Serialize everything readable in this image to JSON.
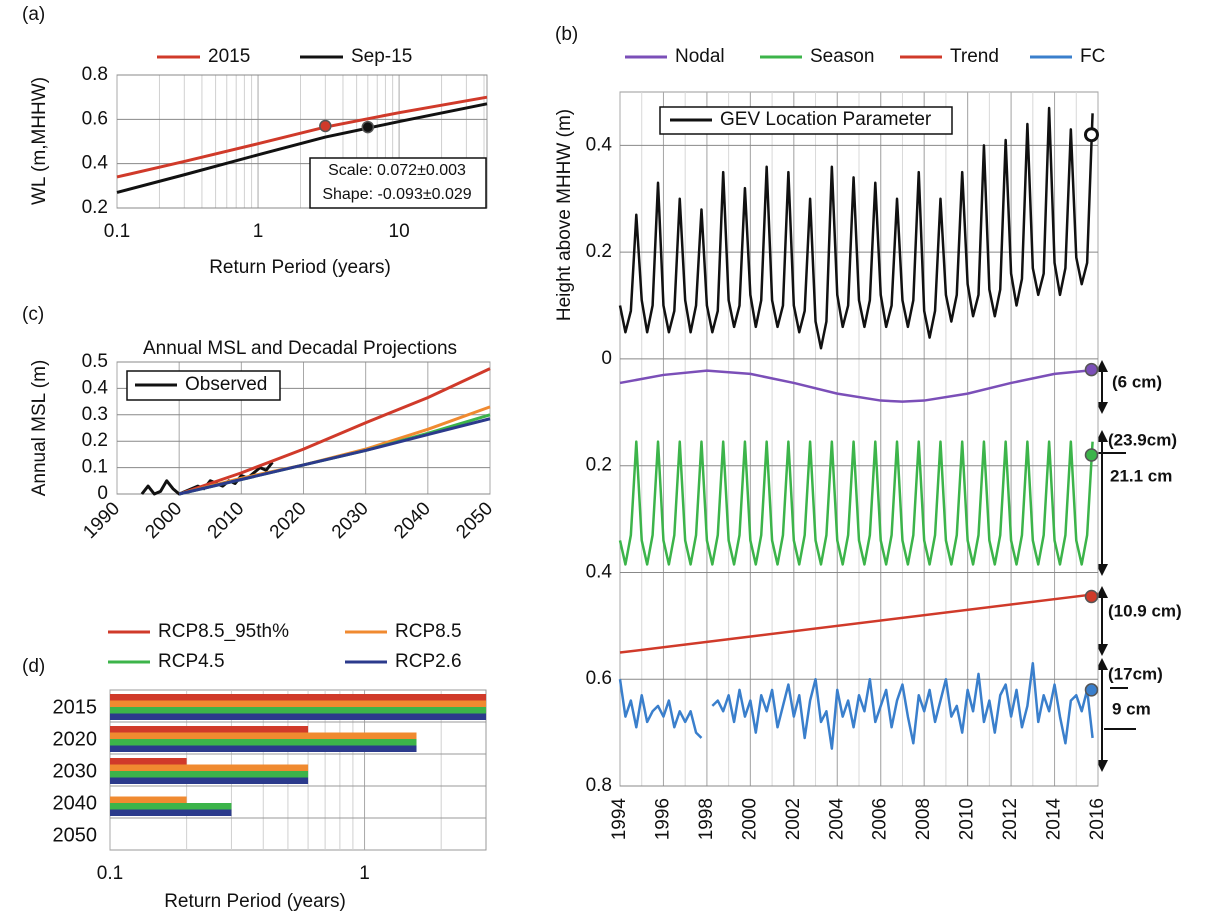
{
  "chart_data": [
    {
      "type": "line",
      "panel_label": "(a)",
      "x_label": "Return Period (years)",
      "y_label": "WL (m,MHHW)",
      "x_log": true,
      "xlim": [
        0.1,
        42
      ],
      "xticks": [
        0.1,
        1,
        10
      ],
      "ylim": [
        0.2,
        0.8
      ],
      "yticks": [
        0.2,
        0.4,
        0.6,
        0.8
      ],
      "grid": true,
      "x": [
        0.1,
        0.3,
        1,
        3,
        10,
        42
      ],
      "series": [
        {
          "name": "2015",
          "color": "#d03a2a",
          "values": [
            0.34,
            0.41,
            0.49,
            0.565,
            0.63,
            0.7
          ],
          "marker_x": 3,
          "marker_y": 0.57
        },
        {
          "name": "Sep-15",
          "color": "#111111",
          "values": [
            0.27,
            0.35,
            0.44,
            0.52,
            0.59,
            0.67
          ],
          "marker_x": 6,
          "marker_y": 0.565
        }
      ],
      "annotations": [
        "Scale: 0.072±0.003",
        "Shape: -0.093±0.029"
      ]
    },
    {
      "type": "line",
      "panel_label": "(b)",
      "y_label": "Height above MHHW (m)",
      "xlim": [
        1994,
        2016
      ],
      "xticks": [
        1994,
        1996,
        1998,
        2000,
        2002,
        2004,
        2006,
        2008,
        2010,
        2012,
        2014,
        2016
      ],
      "ylim": [
        -0.8,
        0.5
      ],
      "yticks": [
        0.4,
        0.2,
        0,
        {
          "value": -0.2,
          "label": "0.2"
        },
        {
          "value": -0.4,
          "label": "0.4"
        },
        {
          "value": -0.6,
          "label": "0.6"
        },
        {
          "value": -0.8,
          "label": "0.8"
        }
      ],
      "grid": true,
      "x": [
        1994,
        1994.25,
        1994.5,
        1994.75,
        1995,
        1995.25,
        1995.5,
        1995.75,
        1996,
        1996.25,
        1996.5,
        1996.75,
        1997,
        1997.25,
        1997.5,
        1997.75,
        1998,
        1998.25,
        1998.5,
        1998.75,
        1999,
        1999.25,
        1999.5,
        1999.75,
        2000,
        2000.25,
        2000.5,
        2000.75,
        2001,
        2001.25,
        2001.5,
        2001.75,
        2002,
        2002.25,
        2002.5,
        2002.75,
        2003,
        2003.25,
        2003.5,
        2003.75,
        2004,
        2004.25,
        2004.5,
        2004.75,
        2005,
        2005.25,
        2005.5,
        2005.75,
        2006,
        2006.25,
        2006.5,
        2006.75,
        2007,
        2007.25,
        2007.5,
        2007.75,
        2008,
        2008.25,
        2008.5,
        2008.75,
        2009,
        2009.25,
        2009.5,
        2009.75,
        2010,
        2010.25,
        2010.5,
        2010.75,
        2011,
        2011.25,
        2011.5,
        2011.75,
        2012,
        2012.25,
        2012.5,
        2012.75,
        2013,
        2013.25,
        2013.5,
        2013.75,
        2014,
        2014.25,
        2014.5,
        2014.75,
        2015,
        2015.25,
        2015.5,
        2015.75
      ],
      "series": [
        {
          "name": "Nodal",
          "color": "#7b4fb8",
          "x": [
            1994,
            1996,
            1998,
            2000,
            2002,
            2004,
            2006,
            2007,
            2008,
            2010,
            2012,
            2014,
            2016
          ],
          "values": [
            -0.045,
            -0.03,
            -0.022,
            -0.028,
            -0.045,
            -0.065,
            -0.078,
            -0.08,
            -0.078,
            -0.065,
            -0.045,
            -0.028,
            -0.02
          ],
          "marker_x": 2015.7,
          "marker_y": -0.02
        },
        {
          "name": "Season",
          "color": "#3cb44a",
          "values": [
            -0.34,
            -0.385,
            -0.33,
            -0.155,
            -0.34,
            -0.385,
            -0.33,
            -0.155,
            -0.34,
            -0.385,
            -0.33,
            -0.155,
            -0.34,
            -0.385,
            -0.33,
            -0.155,
            -0.34,
            -0.385,
            -0.33,
            -0.155,
            -0.34,
            -0.385,
            -0.33,
            -0.155,
            -0.34,
            -0.385,
            -0.33,
            -0.155,
            -0.34,
            -0.385,
            -0.33,
            -0.155,
            -0.34,
            -0.385,
            -0.33,
            -0.155,
            -0.34,
            -0.385,
            -0.33,
            -0.155,
            -0.34,
            -0.385,
            -0.33,
            -0.155,
            -0.34,
            -0.385,
            -0.33,
            -0.155,
            -0.34,
            -0.385,
            -0.33,
            -0.155,
            -0.34,
            -0.385,
            -0.33,
            -0.155,
            -0.34,
            -0.385,
            -0.33,
            -0.155,
            -0.34,
            -0.385,
            -0.33,
            -0.155,
            -0.34,
            -0.385,
            -0.33,
            -0.155,
            -0.34,
            -0.385,
            -0.33,
            -0.155,
            -0.34,
            -0.385,
            -0.33,
            -0.155,
            -0.34,
            -0.385,
            -0.33,
            -0.155,
            -0.34,
            -0.385,
            -0.33,
            -0.155,
            -0.34,
            -0.385,
            -0.33,
            -0.155
          ],
          "marker_x": 2015.7,
          "marker_y": -0.18
        },
        {
          "name": "Trend",
          "color": "#d03a2a",
          "x": [
            1994,
            2016
          ],
          "values": [
            -0.55,
            -0.44
          ],
          "marker_x": 2015.7,
          "marker_y": -0.445
        },
        {
          "name": "FC",
          "color": "#3a7fcc",
          "values": [
            -0.6,
            -0.67,
            -0.64,
            -0.69,
            -0.63,
            -0.68,
            -0.66,
            -0.65,
            -0.67,
            -0.64,
            -0.69,
            -0.66,
            -0.68,
            -0.66,
            -0.7,
            -0.71,
            null,
            -0.65,
            -0.64,
            -0.66,
            -0.63,
            -0.68,
            -0.62,
            -0.67,
            -0.64,
            -0.7,
            -0.63,
            -0.66,
            -0.62,
            -0.69,
            -0.65,
            -0.61,
            -0.67,
            -0.63,
            -0.71,
            -0.64,
            -0.6,
            -0.68,
            -0.66,
            -0.73,
            -0.62,
            -0.67,
            -0.64,
            -0.69,
            -0.63,
            -0.66,
            -0.6,
            -0.68,
            -0.65,
            -0.62,
            -0.69,
            -0.64,
            -0.61,
            -0.67,
            -0.72,
            -0.63,
            -0.66,
            -0.62,
            -0.68,
            -0.64,
            -0.6,
            -0.67,
            -0.65,
            -0.7,
            -0.62,
            -0.66,
            -0.59,
            -0.68,
            -0.64,
            -0.7,
            -0.63,
            -0.61,
            -0.67,
            -0.62,
            -0.69,
            -0.65,
            -0.57,
            -0.68,
            -0.63,
            -0.66,
            -0.61,
            -0.67,
            -0.72,
            -0.64,
            -0.63,
            -0.66,
            -0.62,
            -0.71
          ],
          "marker_x": 2015.7,
          "marker_y": -0.62
        },
        {
          "name": "GEV Location Parameter",
          "color": "#111111",
          "values": [
            0.1,
            0.05,
            0.09,
            0.27,
            0.11,
            0.05,
            0.1,
            0.33,
            0.1,
            0.05,
            0.09,
            0.3,
            0.11,
            0.05,
            0.1,
            0.28,
            0.1,
            0.05,
            0.09,
            0.35,
            0.11,
            0.06,
            0.1,
            0.32,
            0.12,
            0.06,
            0.11,
            0.36,
            0.11,
            0.06,
            0.1,
            0.35,
            0.1,
            0.05,
            0.09,
            0.3,
            0.07,
            0.02,
            0.07,
            0.36,
            0.12,
            0.06,
            0.1,
            0.34,
            0.11,
            0.06,
            0.11,
            0.33,
            0.12,
            0.06,
            0.1,
            0.3,
            0.11,
            0.06,
            0.11,
            0.35,
            0.09,
            0.04,
            0.09,
            0.3,
            0.12,
            0.07,
            0.12,
            0.35,
            0.14,
            0.08,
            0.12,
            0.4,
            0.13,
            0.08,
            0.13,
            0.41,
            0.16,
            0.1,
            0.15,
            0.44,
            0.17,
            0.12,
            0.16,
            0.47,
            0.18,
            0.12,
            0.17,
            0.43,
            0.19,
            0.14,
            0.18,
            0.46
          ],
          "marker_x": 2015.7,
          "marker_y": 0.42,
          "marker_fill": "#ffffff"
        }
      ],
      "annotations": [
        "(6 cm)",
        "(23.9cm)",
        "21.1 cm",
        "(10.9 cm)",
        "(17cm)",
        "9 cm"
      ]
    },
    {
      "type": "line",
      "panel_label": "(c)",
      "title": "Annual MSL and Decadal Projections",
      "y_label": "Annual MSL (m)",
      "xlim": [
        1990,
        2050
      ],
      "xticks": [
        1990,
        2000,
        2010,
        2020,
        2030,
        2040,
        2050
      ],
      "ylim": [
        0,
        0.5
      ],
      "yticks": [
        0,
        0.1,
        0.2,
        0.3,
        0.4,
        0.5
      ],
      "grid": true,
      "series": [
        {
          "name": "Observed",
          "color": "#111111",
          "x": [
            1994,
            1995,
            1996,
            1997,
            1998,
            1999,
            2000,
            2001,
            2002,
            2003,
            2004,
            2005,
            2006,
            2007,
            2008,
            2009,
            2010,
            2011,
            2012,
            2013,
            2014,
            2015
          ],
          "values": [
            0,
            0.03,
            0,
            0.01,
            0.05,
            0.02,
            0,
            0.01,
            0.02,
            0.03,
            0.02,
            0.05,
            0.04,
            0.03,
            0.05,
            0.04,
            0.07,
            0.06,
            0.08,
            0.1,
            0.09,
            0.12
          ]
        },
        {
          "color": "#d03a2a",
          "x": [
            2000,
            2010,
            2020,
            2030,
            2040,
            2050
          ],
          "values": [
            0,
            0.08,
            0.17,
            0.27,
            0.365,
            0.475
          ]
        },
        {
          "color": "#f08a30",
          "x": [
            2000,
            2010,
            2020,
            2030,
            2040,
            2050
          ],
          "values": [
            0,
            0.06,
            0.11,
            0.17,
            0.245,
            0.33
          ]
        },
        {
          "color": "#3cb44a",
          "x": [
            2000,
            2010,
            2020,
            2030,
            2040,
            2050
          ],
          "values": [
            0,
            0.055,
            0.11,
            0.165,
            0.23,
            0.3
          ]
        },
        {
          "color": "#2b3a8c",
          "x": [
            2000,
            2010,
            2020,
            2030,
            2040,
            2050
          ],
          "values": [
            0,
            0.055,
            0.11,
            0.165,
            0.225,
            0.285
          ]
        }
      ]
    },
    {
      "type": "bar",
      "orientation": "horizontal",
      "panel_label": "(d)",
      "x_label": "Return Period (years)",
      "x_log": true,
      "xlim": [
        0.1,
        3
      ],
      "xticks": [
        0.1,
        1
      ],
      "grid": true,
      "categories": [
        "2015",
        "2020",
        "2030",
        "2040",
        "2050"
      ],
      "series": [
        {
          "name": "RCP8.5_95th%",
          "color": "#d03a2a",
          "values": [
            3,
            0.6,
            0.2,
            null,
            null
          ]
        },
        {
          "name": "RCP8.5",
          "color": "#f08a30",
          "values": [
            3,
            1.6,
            0.6,
            0.2,
            null
          ]
        },
        {
          "name": "RCP4.5",
          "color": "#3cb44a",
          "values": [
            3,
            1.6,
            0.6,
            0.3,
            null
          ]
        },
        {
          "name": "RCP2.6",
          "color": "#2b3a8c",
          "values": [
            3,
            1.6,
            0.6,
            0.3,
            null
          ]
        }
      ]
    }
  ]
}
